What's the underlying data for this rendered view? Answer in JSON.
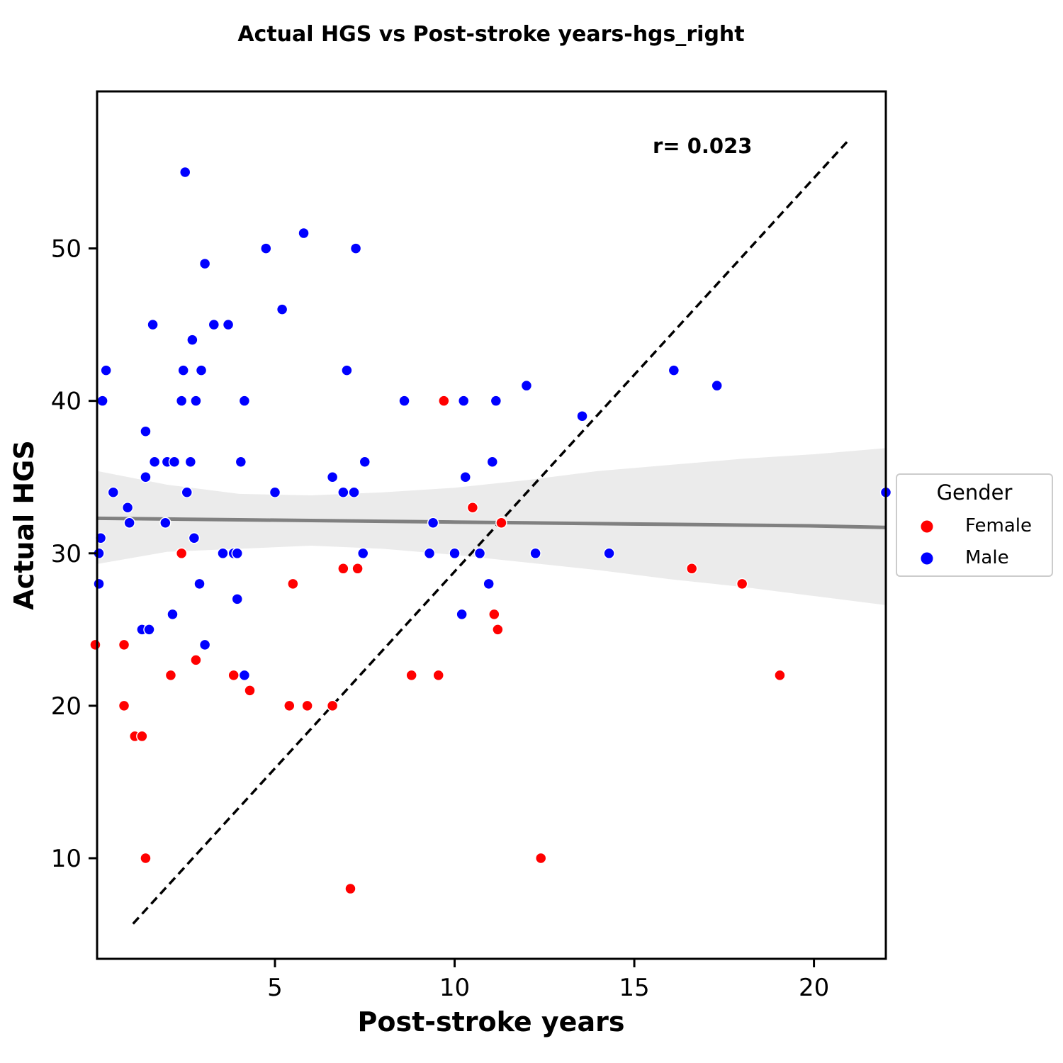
{
  "chart_data": {
    "type": "scatter",
    "title": "Actual HGS vs Post-stroke years-hgs_right",
    "xlabel": "Post-stroke years",
    "ylabel": "Actual HGS",
    "xlim": [
      0.05,
      22.0
    ],
    "ylim": [
      3.4,
      60.3
    ],
    "xticks": [
      5,
      10,
      15,
      20
    ],
    "yticks": [
      10,
      20,
      30,
      40,
      50
    ],
    "grid": false,
    "legend": {
      "title": "Gender",
      "placement": "right-outside",
      "entries": [
        {
          "label": "Female",
          "color": "#ff0000"
        },
        {
          "label": "Male",
          "color": "#0000ff"
        }
      ]
    },
    "annotation": {
      "text": "r= 0.023",
      "x": 15.6,
      "y": 56
    },
    "identity_line": {
      "x": [
        1.05,
        21.0
      ],
      "y": [
        5.7,
        57.2
      ],
      "style": "dashed",
      "color": "#000000"
    },
    "regression": {
      "color": "#808080",
      "band_color": "#ebebeb",
      "x": [
        0.05,
        2,
        4,
        6,
        8,
        10,
        12,
        14,
        16,
        18,
        20,
        22
      ],
      "y": [
        32.3,
        32.25,
        32.2,
        32.15,
        32.1,
        32.05,
        32.0,
        31.95,
        31.9,
        31.85,
        31.8,
        31.7
      ],
      "lower": [
        29.3,
        30.1,
        30.3,
        30.5,
        30.3,
        29.9,
        29.4,
        28.9,
        28.3,
        27.8,
        27.2,
        26.6
      ],
      "upper": [
        35.4,
        34.5,
        33.9,
        33.8,
        34.0,
        34.3,
        34.8,
        35.4,
        35.8,
        36.2,
        36.5,
        36.9
      ]
    },
    "series": [
      {
        "name": "Female",
        "color": "#ff0000",
        "points": [
          [
            0.0,
            24
          ],
          [
            0.8,
            24
          ],
          [
            0.8,
            20
          ],
          [
            1.1,
            18
          ],
          [
            1.3,
            18
          ],
          [
            1.4,
            10
          ],
          [
            2.1,
            22
          ],
          [
            2.4,
            30
          ],
          [
            2.8,
            23
          ],
          [
            3.85,
            22
          ],
          [
            4.3,
            21
          ],
          [
            5.4,
            20
          ],
          [
            5.5,
            28
          ],
          [
            5.9,
            20
          ],
          [
            6.6,
            20
          ],
          [
            6.9,
            29
          ],
          [
            7.1,
            8
          ],
          [
            7.3,
            29
          ],
          [
            8.8,
            22
          ],
          [
            9.55,
            22
          ],
          [
            9.7,
            40
          ],
          [
            10.5,
            33
          ],
          [
            11.1,
            26
          ],
          [
            11.2,
            25
          ],
          [
            11.3,
            32
          ],
          [
            12.4,
            10
          ],
          [
            16.6,
            29
          ],
          [
            18.0,
            28
          ],
          [
            19.05,
            22
          ]
        ]
      },
      {
        "name": "Male",
        "color": "#0000ff",
        "points": [
          [
            0.1,
            30
          ],
          [
            0.1,
            28
          ],
          [
            0.15,
            31
          ],
          [
            0.2,
            40
          ],
          [
            0.3,
            42
          ],
          [
            0.5,
            34
          ],
          [
            0.9,
            33
          ],
          [
            0.95,
            32
          ],
          [
            1.3,
            25
          ],
          [
            1.4,
            38
          ],
          [
            1.4,
            35
          ],
          [
            1.5,
            25
          ],
          [
            1.6,
            45
          ],
          [
            1.65,
            36
          ],
          [
            1.95,
            32
          ],
          [
            2.0,
            36
          ],
          [
            2.15,
            26
          ],
          [
            2.2,
            36
          ],
          [
            2.4,
            40
          ],
          [
            2.45,
            42
          ],
          [
            2.5,
            55
          ],
          [
            2.55,
            34
          ],
          [
            2.65,
            36
          ],
          [
            2.7,
            44
          ],
          [
            2.75,
            31
          ],
          [
            2.8,
            40
          ],
          [
            2.9,
            28
          ],
          [
            2.95,
            42
          ],
          [
            3.05,
            49
          ],
          [
            3.05,
            24
          ],
          [
            3.3,
            45
          ],
          [
            3.55,
            30
          ],
          [
            3.7,
            45
          ],
          [
            3.85,
            30
          ],
          [
            3.95,
            30
          ],
          [
            3.95,
            27
          ],
          [
            4.05,
            36
          ],
          [
            4.15,
            22
          ],
          [
            4.15,
            40
          ],
          [
            4.75,
            50
          ],
          [
            5.0,
            34
          ],
          [
            5.2,
            46
          ],
          [
            5.8,
            51
          ],
          [
            6.6,
            35
          ],
          [
            6.9,
            34
          ],
          [
            7.0,
            42
          ],
          [
            7.2,
            34
          ],
          [
            7.25,
            50
          ],
          [
            7.45,
            30
          ],
          [
            7.5,
            36
          ],
          [
            8.6,
            40
          ],
          [
            9.3,
            30
          ],
          [
            9.4,
            32
          ],
          [
            10.0,
            30
          ],
          [
            10.2,
            26
          ],
          [
            10.25,
            40
          ],
          [
            10.3,
            35
          ],
          [
            10.7,
            30
          ],
          [
            10.95,
            28
          ],
          [
            11.05,
            36
          ],
          [
            11.15,
            40
          ],
          [
            12.0,
            41
          ],
          [
            12.25,
            30
          ],
          [
            13.55,
            39
          ],
          [
            14.3,
            30
          ],
          [
            16.1,
            42
          ],
          [
            17.3,
            41
          ],
          [
            22.0,
            34
          ]
        ]
      }
    ]
  }
}
